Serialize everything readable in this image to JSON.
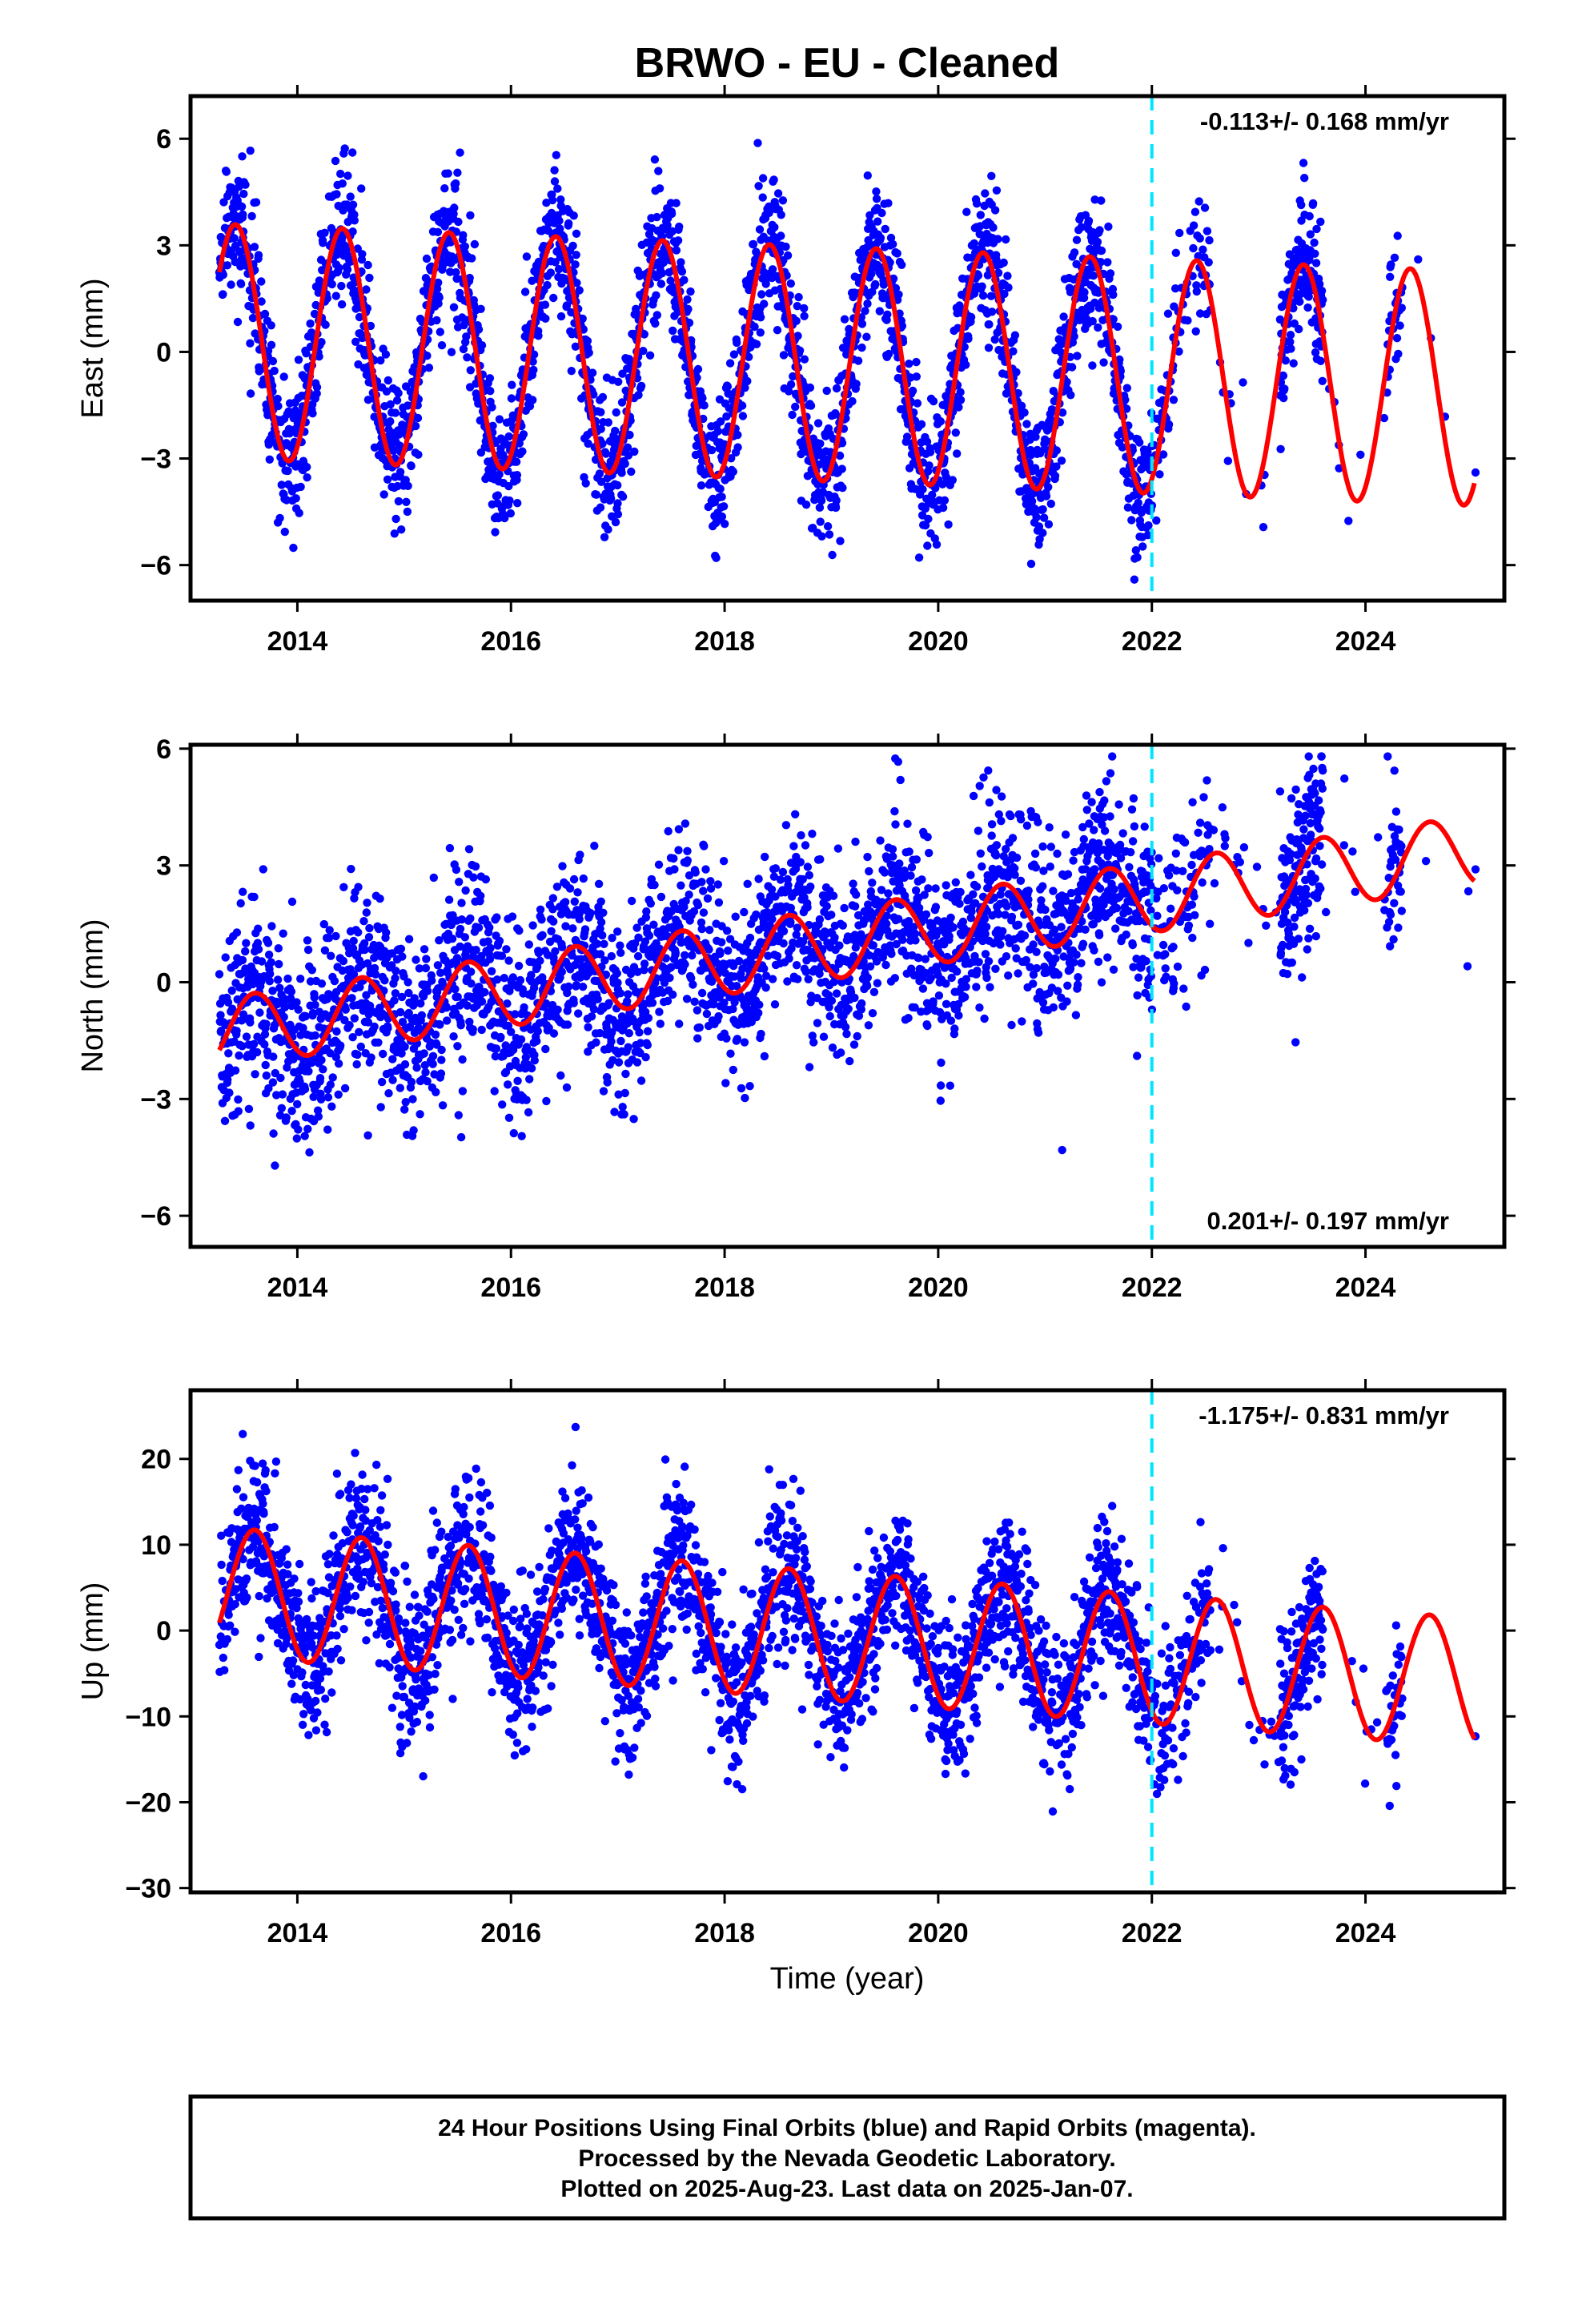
{
  "title": "BRWO  - EU - Cleaned",
  "x_axis_title": "Time (year)",
  "colors": {
    "points": "#0000ff",
    "model": "#ff0000",
    "break_line": "#00e5ff",
    "frame": "#000000"
  },
  "chart_data": [
    {
      "type": "scatter",
      "panel": "east",
      "ylabel": "East (mm)",
      "xlim": [
        2013.0,
        2025.3
      ],
      "ylim": [
        -7.0,
        7.2
      ],
      "xticks": [
        2014,
        2016,
        2018,
        2020,
        2022,
        2024
      ],
      "xtick_labels": [
        "2014",
        "2016",
        "2018",
        "2020",
        "2022",
        "2024"
      ],
      "yticks": [
        -6,
        -3,
        0,
        3,
        6
      ],
      "ytick_labels": [
        "−6",
        "−3",
        "0",
        "3",
        "6"
      ],
      "rate_text": "-0.113+/- 0.168 mm/yr",
      "rate_position": "top-right",
      "break_epoch": 2022.0,
      "data_start": 2013.27,
      "data_end": 2025.02,
      "seasonal": {
        "amplitude": 3.3,
        "peak_phase": 0.42,
        "trend_mm_per_yr": -0.113,
        "offset": 0.3,
        "noise_sd": 1.0
      },
      "sparse_segments": [
        [
          2022.0,
          2022.55,
          0.45
        ],
        [
          2022.55,
          2023.2,
          0.05
        ],
        [
          2023.2,
          2023.6,
          1.0
        ],
        [
          2023.6,
          2024.2,
          0.03
        ],
        [
          2024.2,
          2024.35,
          0.6
        ],
        [
          2024.35,
          2025.0,
          0.01
        ]
      ]
    },
    {
      "type": "scatter",
      "panel": "north",
      "ylabel": "North (mm)",
      "xlim": [
        2013.0,
        2025.3
      ],
      "ylim": [
        -6.8,
        6.1
      ],
      "xticks": [
        2014,
        2016,
        2018,
        2020,
        2022,
        2024
      ],
      "xtick_labels": [
        "2014",
        "2016",
        "2018",
        "2020",
        "2022",
        "2024"
      ],
      "yticks": [
        -6,
        -3,
        0,
        3,
        6
      ],
      "ytick_labels": [
        "−6",
        "−3",
        "0",
        "3",
        "6"
      ],
      "rate_text": "0.201+/- 0.197 mm/yr",
      "rate_position": "bottom-right",
      "break_epoch": 2022.0,
      "data_start": 2013.27,
      "data_end": 2025.02,
      "seasonal": {
        "amplitude": 0.9,
        "peak_phase": 0.6,
        "trend_mm_per_yr": 0.4,
        "offset": -1.3,
        "noise_sd": 1.2
      },
      "sparse_segments": [
        [
          2022.0,
          2022.55,
          0.45
        ],
        [
          2022.55,
          2023.2,
          0.05
        ],
        [
          2023.2,
          2023.6,
          1.0
        ],
        [
          2023.6,
          2024.2,
          0.03
        ],
        [
          2024.2,
          2024.35,
          0.6
        ],
        [
          2024.35,
          2025.0,
          0.01
        ]
      ]
    },
    {
      "type": "scatter",
      "panel": "up",
      "ylabel": "Up (mm)",
      "xlim": [
        2013.0,
        2025.3
      ],
      "ylim": [
        -30.5,
        28.0
      ],
      "xticks": [
        2014,
        2016,
        2018,
        2020,
        2022,
        2024
      ],
      "xtick_labels": [
        "2014",
        "2016",
        "2018",
        "2020",
        "2022",
        "2024"
      ],
      "yticks": [
        -30,
        -20,
        -10,
        0,
        10,
        20
      ],
      "ytick_labels": [
        "−30",
        "−20",
        "−10",
        "0",
        "10",
        "20"
      ],
      "rate_text": "-1.175+/- 0.831 mm/yr",
      "rate_position": "top-right",
      "break_epoch": 2022.0,
      "data_start": 2013.27,
      "data_end": 2025.02,
      "seasonal": {
        "amplitude": 7.5,
        "peak_phase": 0.6,
        "trend_mm_per_yr": -0.9,
        "offset": 4.5,
        "noise_sd": 4.5
      },
      "sparse_segments": [
        [
          2022.0,
          2022.55,
          0.45
        ],
        [
          2022.55,
          2023.2,
          0.05
        ],
        [
          2023.2,
          2023.6,
          1.0
        ],
        [
          2023.6,
          2024.2,
          0.03
        ],
        [
          2024.2,
          2024.35,
          0.6
        ],
        [
          2024.35,
          2025.0,
          0.01
        ]
      ]
    }
  ],
  "footer": {
    "line1": "24 Hour Positions Using Final Orbits (blue) and Rapid Orbits (magenta).",
    "line2": "Processed by the Nevada Geodetic Laboratory.",
    "line3": "Plotted on 2025-Aug-23. Last data on 2025-Jan-07."
  }
}
